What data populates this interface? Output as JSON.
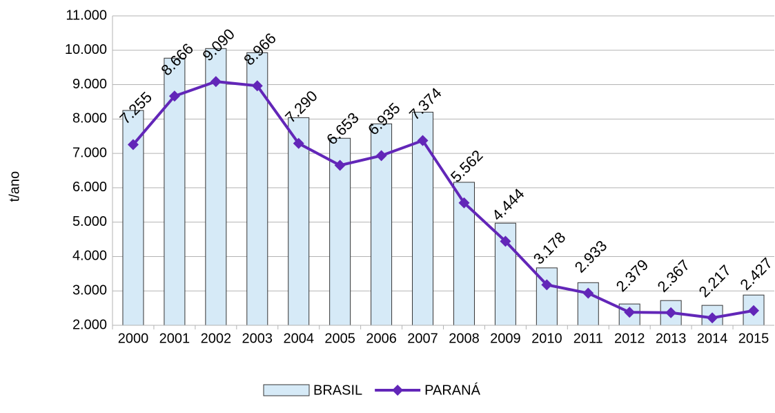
{
  "chart_data": {
    "type": "bar-line",
    "y_label": "t/ano",
    "categories": [
      "2000",
      "2001",
      "2002",
      "2003",
      "2004",
      "2005",
      "2006",
      "2007",
      "2008",
      "2009",
      "2010",
      "2011",
      "2012",
      "2013",
      "2014",
      "2015"
    ],
    "series": [
      {
        "name": "BRASIL",
        "type": "bar",
        "color": "#d6eaf7",
        "values": [
          8250,
          9770,
          10050,
          9930,
          8040,
          7440,
          7860,
          8200,
          6160,
          4970,
          3670,
          3240,
          2620,
          2720,
          2580,
          2880
        ]
      },
      {
        "name": "PARANÁ",
        "type": "line",
        "color": "#6226b8",
        "values": [
          7255,
          8666,
          9090,
          8966,
          7290,
          6653,
          6935,
          7374,
          5562,
          4444,
          3178,
          2933,
          2379,
          2367,
          2217,
          2427
        ],
        "value_labels": [
          "7.255",
          "8.666",
          "9.090",
          "8.966",
          "7.290",
          "6.653",
          "6.935",
          "7.374",
          "5.562",
          "4.444",
          "3.178",
          "2.933",
          "2.379",
          "2.367",
          "2.217",
          "2.427"
        ]
      }
    ],
    "ylim": [
      2000,
      11000
    ],
    "yticks": [
      {
        "value": 2000,
        "label": "2.000"
      },
      {
        "value": 3000,
        "label": "3.000"
      },
      {
        "value": 4000,
        "label": "4.000"
      },
      {
        "value": 5000,
        "label": "5.000"
      },
      {
        "value": 6000,
        "label": "6.000"
      },
      {
        "value": 7000,
        "label": "7.000"
      },
      {
        "value": 8000,
        "label": "8.000"
      },
      {
        "value": 9000,
        "label": "9.000"
      },
      {
        "value": 10000,
        "label": "10.000"
      },
      {
        "value": 11000,
        "label": "11.000"
      }
    ],
    "grid": true,
    "legend": "bottom"
  }
}
